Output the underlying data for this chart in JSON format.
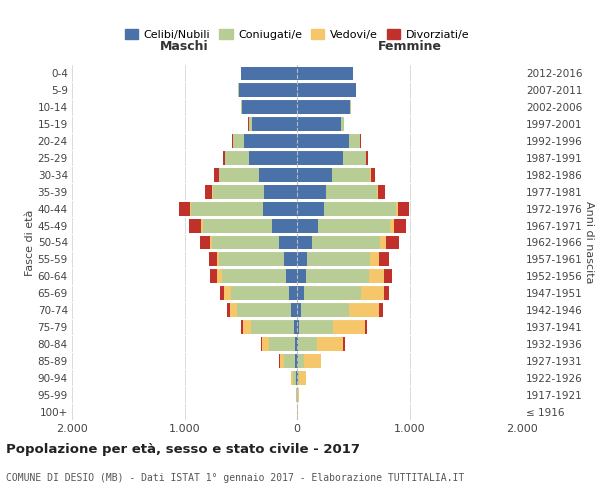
{
  "age_groups": [
    "100+",
    "95-99",
    "90-94",
    "85-89",
    "80-84",
    "75-79",
    "70-74",
    "65-69",
    "60-64",
    "55-59",
    "50-54",
    "45-49",
    "40-44",
    "35-39",
    "30-34",
    "25-29",
    "20-24",
    "15-19",
    "10-14",
    "5-9",
    "0-4"
  ],
  "birth_years": [
    "≤ 1916",
    "1917-1921",
    "1922-1926",
    "1927-1931",
    "1932-1936",
    "1937-1941",
    "1942-1946",
    "1947-1951",
    "1952-1956",
    "1957-1961",
    "1962-1966",
    "1967-1971",
    "1972-1976",
    "1977-1981",
    "1982-1986",
    "1987-1991",
    "1992-1996",
    "1997-2001",
    "2002-2006",
    "2007-2011",
    "2012-2016"
  ],
  "male_celibi": [
    2,
    3,
    8,
    15,
    20,
    30,
    50,
    70,
    100,
    120,
    160,
    220,
    300,
    290,
    340,
    430,
    470,
    400,
    490,
    520,
    500
  ],
  "male_coniugati": [
    2,
    5,
    30,
    100,
    230,
    380,
    480,
    520,
    570,
    570,
    600,
    620,
    640,
    460,
    350,
    210,
    100,
    30,
    8,
    4,
    2
  ],
  "male_vedovi": [
    0,
    2,
    15,
    40,
    60,
    70,
    65,
    55,
    40,
    20,
    15,
    10,
    8,
    4,
    3,
    2,
    1,
    1,
    0,
    0,
    0
  ],
  "male_divorziati": [
    0,
    0,
    2,
    8,
    12,
    18,
    25,
    40,
    60,
    70,
    90,
    110,
    100,
    65,
    45,
    20,
    10,
    5,
    2,
    1,
    0
  ],
  "female_nubili": [
    2,
    3,
    5,
    10,
    12,
    20,
    35,
    60,
    80,
    90,
    130,
    190,
    240,
    260,
    310,
    410,
    460,
    390,
    470,
    520,
    500
  ],
  "female_coniugate": [
    2,
    4,
    15,
    50,
    170,
    300,
    430,
    510,
    560,
    560,
    610,
    640,
    640,
    450,
    340,
    200,
    100,
    28,
    8,
    4,
    2
  ],
  "female_vedove": [
    2,
    10,
    60,
    150,
    230,
    280,
    260,
    200,
    130,
    75,
    50,
    30,
    18,
    10,
    5,
    3,
    2,
    1,
    0,
    0,
    0
  ],
  "female_divorziate": [
    0,
    0,
    2,
    5,
    12,
    20,
    35,
    50,
    70,
    90,
    120,
    110,
    95,
    60,
    40,
    18,
    8,
    3,
    1,
    0,
    0
  ],
  "colors": {
    "celibi": "#4a72a8",
    "coniugati": "#b8cc96",
    "vedovi": "#f5c76a",
    "divorziati": "#c0312b"
  },
  "xlim": 2000,
  "title": "Popolazione per età, sesso e stato civile - 2017",
  "subtitle": "COMUNE DI DESIO (MB) - Dati ISTAT 1° gennaio 2017 - Elaborazione TUTTITALIA.IT",
  "ylabel_left": "Fasce di età",
  "ylabel_right": "Anni di nascita",
  "legend_labels": [
    "Celibi/Nubili",
    "Coniugati/e",
    "Vedovi/e",
    "Divorziati/e"
  ],
  "col_header_left": "Maschi",
  "col_header_right": "Femmine"
}
